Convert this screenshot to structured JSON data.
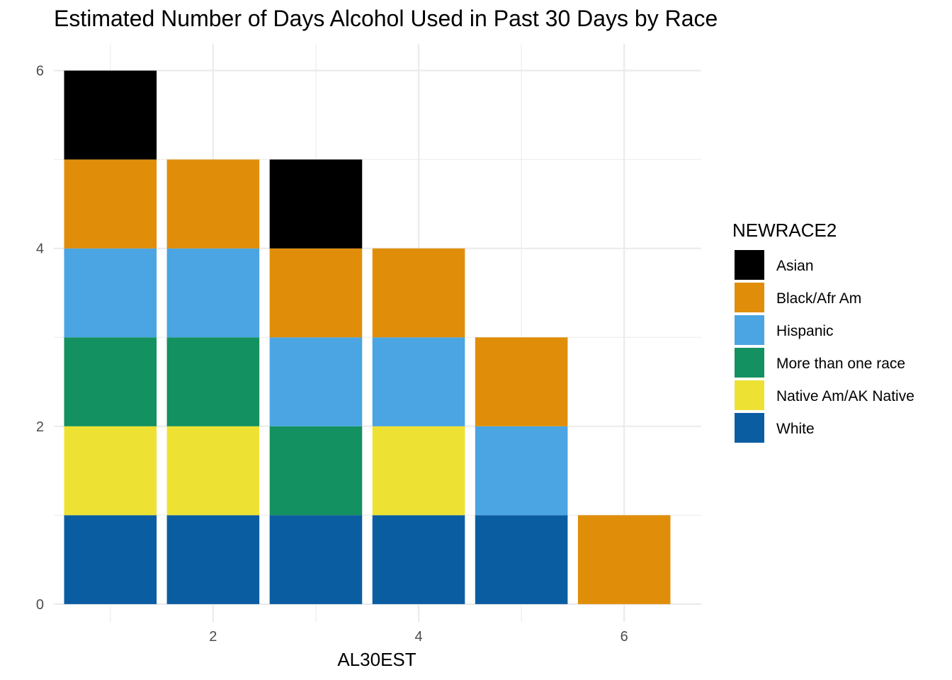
{
  "chart_data": {
    "type": "bar",
    "title": "Estimated Number of Days Alcohol Used in Past 30 Days by Race",
    "xlabel": "AL30EST",
    "ylabel": "",
    "x": [
      1,
      2,
      3,
      4,
      5,
      6
    ],
    "xlim": [
      0.45,
      6.75
    ],
    "ylim": [
      -0.2,
      6.3
    ],
    "x_ticks": [
      2,
      4,
      6
    ],
    "y_ticks": [
      0,
      2,
      4,
      6
    ],
    "stacked": true,
    "grid": true,
    "legend_title": "NEWRACE2",
    "legend_position": "right",
    "series": [
      {
        "name": "Asian",
        "color": "#000000",
        "values": [
          1,
          0,
          1,
          0,
          0,
          0
        ]
      },
      {
        "name": "Black/Afr Am",
        "color": "#E08E0A",
        "values": [
          1,
          1,
          1,
          1,
          1,
          1
        ]
      },
      {
        "name": "Hispanic",
        "color": "#4AA5E2",
        "values": [
          1,
          1,
          1,
          1,
          1,
          0
        ]
      },
      {
        "name": "More than one race",
        "color": "#149160",
        "values": [
          1,
          1,
          1,
          0,
          0,
          0
        ]
      },
      {
        "name": "Native Am/AK Native",
        "color": "#EDE234",
        "values": [
          1,
          1,
          0,
          1,
          0,
          0
        ]
      },
      {
        "name": "White",
        "color": "#0B5DA2",
        "values": [
          1,
          1,
          1,
          1,
          1,
          0
        ]
      }
    ]
  }
}
